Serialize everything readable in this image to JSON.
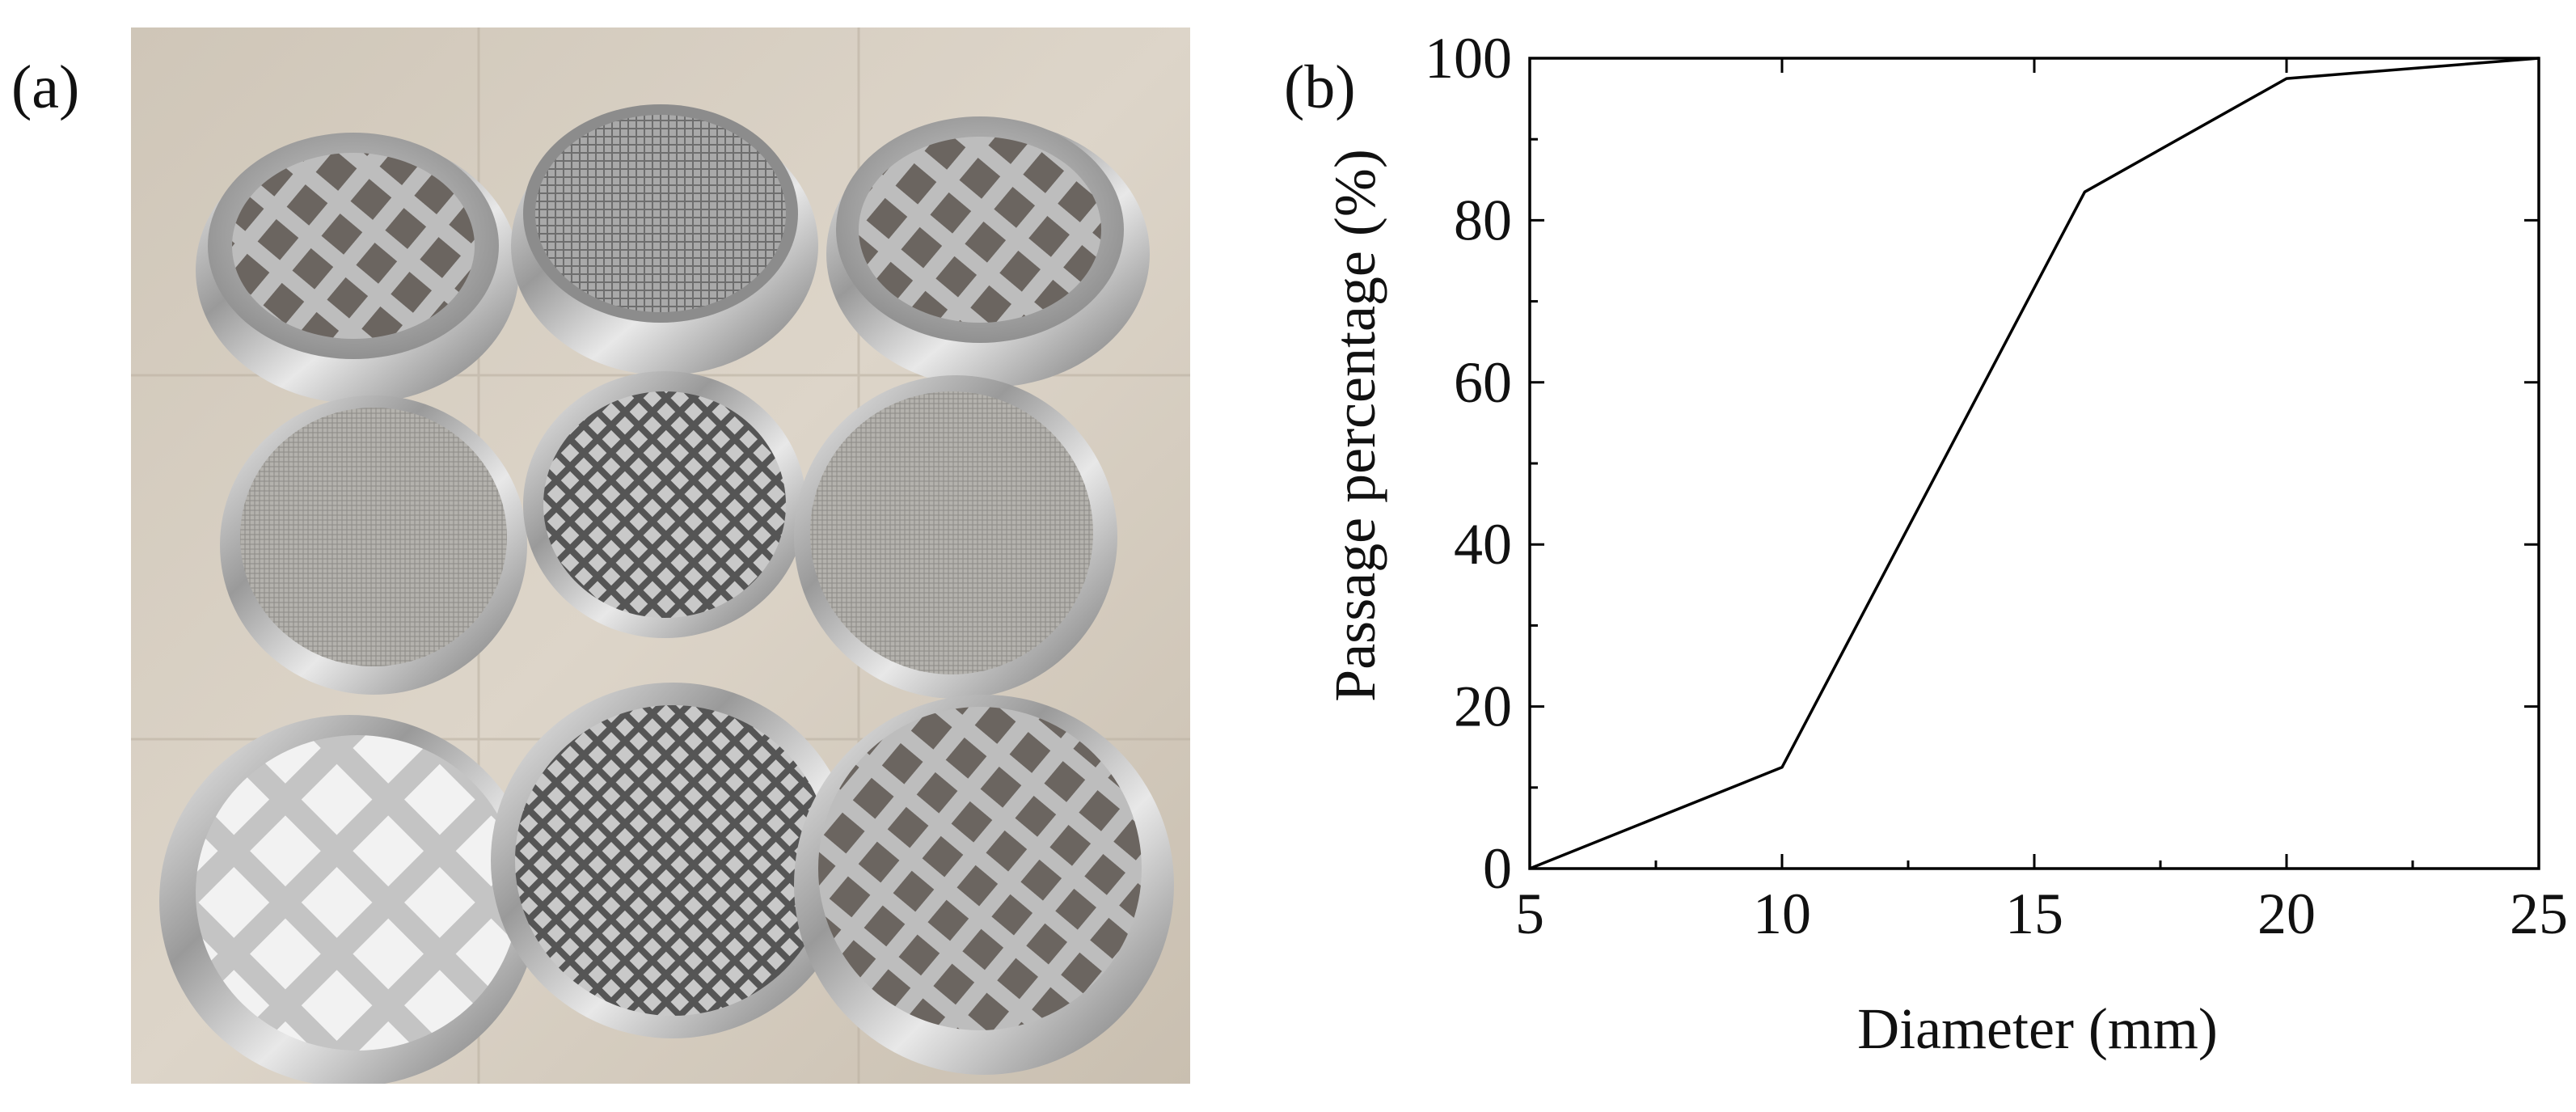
{
  "panels": {
    "a": "(a)",
    "b": "(b)"
  },
  "photo": {
    "icon": "sieve-set-photo"
  },
  "chart_data": {
    "type": "line",
    "xlabel": "Diameter (mm)",
    "ylabel": "Passage percentage (%)",
    "xlim": [
      5,
      25
    ],
    "ylim": [
      0,
      100
    ],
    "xticks": [
      5,
      10,
      15,
      20,
      25
    ],
    "yticks": [
      0,
      20,
      40,
      60,
      80,
      100
    ],
    "grid": false,
    "series": [
      {
        "x": [
          5,
          10,
          16,
          20,
          25
        ],
        "y": [
          0,
          12.5,
          83.5,
          97.5,
          100
        ]
      }
    ]
  }
}
